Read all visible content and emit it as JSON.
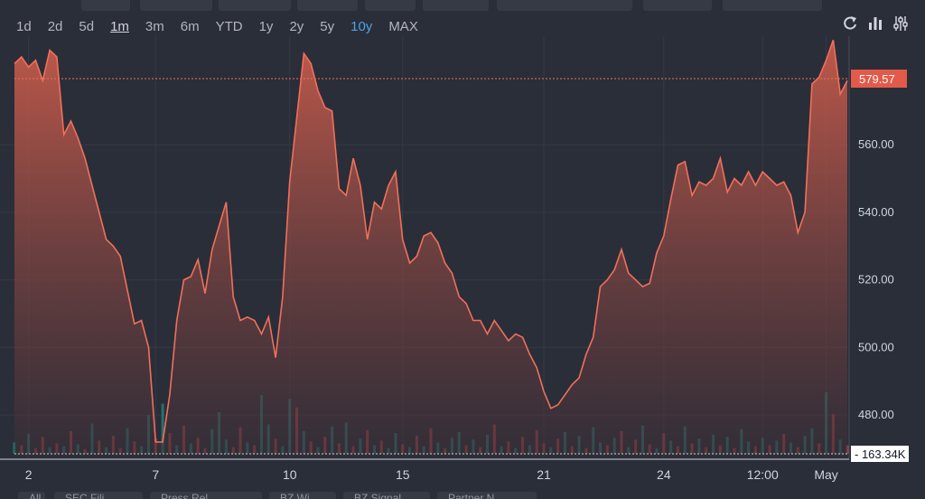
{
  "range_buttons": [
    "1d",
    "2d",
    "5d",
    "1m",
    "3m",
    "6m",
    "YTD",
    "1y",
    "2y",
    "5y",
    "10y",
    "MAX"
  ],
  "active_range": "1m",
  "highlight_range": "10y",
  "tool_icons": [
    "refresh-icon",
    "bar-chart-icon",
    "settings-sliders-icon"
  ],
  "bottom_tabs": [
    "All",
    "SEC Fili...",
    "Press Rel...",
    "BZ Wi...",
    "BZ Signal...",
    "Partner N..."
  ],
  "colors": {
    "background": "#2a2e39",
    "line": "#f0705a",
    "price_label_bg": "#e35a4a",
    "volume_up": "#26a69a",
    "volume_down": "#ef5350",
    "grid": "#363a45"
  },
  "chart_data": {
    "type": "area",
    "x_tick_labels": [
      "2",
      "7",
      "10",
      "15",
      "21",
      "24",
      "12:00",
      "May"
    ],
    "y_tick_labels": [
      "480.00",
      "500.00",
      "520.00",
      "540.00",
      "560.00"
    ],
    "ylim": [
      468,
      590
    ],
    "last_price": 579.57,
    "last_price_label": "579.57",
    "volume_label": "163.34K",
    "price_series": [
      [
        0,
        584
      ],
      [
        1,
        586
      ],
      [
        2,
        583
      ],
      [
        3,
        585
      ],
      [
        4,
        579
      ],
      [
        5,
        588
      ],
      [
        6,
        586
      ],
      [
        7,
        563
      ],
      [
        8,
        567
      ],
      [
        9,
        562
      ],
      [
        10,
        556
      ],
      [
        11,
        548
      ],
      [
        12,
        540
      ],
      [
        13,
        532
      ],
      [
        14,
        530
      ],
      [
        15,
        527
      ],
      [
        16,
        517
      ],
      [
        17,
        507
      ],
      [
        18,
        508
      ],
      [
        19,
        500
      ],
      [
        20,
        472
      ],
      [
        21,
        472
      ],
      [
        22,
        486
      ],
      [
        23,
        508
      ],
      [
        24,
        520
      ],
      [
        25,
        521
      ],
      [
        26,
        526
      ],
      [
        27,
        516
      ],
      [
        28,
        529
      ],
      [
        29,
        536
      ],
      [
        30,
        543
      ],
      [
        31,
        515
      ],
      [
        32,
        508
      ],
      [
        33,
        509
      ],
      [
        34,
        508
      ],
      [
        35,
        504
      ],
      [
        36,
        509
      ],
      [
        37,
        497
      ],
      [
        38,
        515
      ],
      [
        39,
        549
      ],
      [
        40,
        568
      ],
      [
        41,
        587
      ],
      [
        42,
        584
      ],
      [
        43,
        576
      ],
      [
        44,
        571
      ],
      [
        45,
        570
      ],
      [
        46,
        547
      ],
      [
        47,
        545
      ],
      [
        48,
        556
      ],
      [
        49,
        548
      ],
      [
        50,
        532
      ],
      [
        51,
        543
      ],
      [
        52,
        541
      ],
      [
        53,
        548
      ],
      [
        54,
        552
      ],
      [
        55,
        532
      ],
      [
        56,
        525
      ],
      [
        57,
        527
      ],
      [
        58,
        533
      ],
      [
        59,
        534
      ],
      [
        60,
        531
      ],
      [
        61,
        525
      ],
      [
        62,
        522
      ],
      [
        63,
        515
      ],
      [
        64,
        513
      ],
      [
        65,
        508
      ],
      [
        66,
        508
      ],
      [
        67,
        504
      ],
      [
        68,
        508
      ],
      [
        69,
        505
      ],
      [
        70,
        502
      ],
      [
        71,
        504
      ],
      [
        72,
        503
      ],
      [
        73,
        498
      ],
      [
        74,
        494
      ],
      [
        75,
        487
      ],
      [
        76,
        482
      ],
      [
        77,
        483
      ],
      [
        78,
        486
      ],
      [
        79,
        489
      ],
      [
        80,
        491
      ],
      [
        81,
        498
      ],
      [
        82,
        503
      ],
      [
        83,
        518
      ],
      [
        84,
        520
      ],
      [
        85,
        523
      ],
      [
        86,
        529
      ],
      [
        87,
        522
      ],
      [
        88,
        520
      ],
      [
        89,
        518
      ],
      [
        90,
        519
      ],
      [
        91,
        528
      ],
      [
        92,
        533
      ],
      [
        93,
        544
      ],
      [
        94,
        554
      ],
      [
        95,
        555
      ],
      [
        96,
        545
      ],
      [
        97,
        549
      ],
      [
        98,
        548
      ],
      [
        99,
        550
      ],
      [
        100,
        556
      ],
      [
        101,
        546
      ],
      [
        102,
        550
      ],
      [
        103,
        548
      ],
      [
        104,
        552
      ],
      [
        105,
        548
      ],
      [
        106,
        552
      ],
      [
        107,
        550
      ],
      [
        108,
        548
      ],
      [
        109,
        549
      ],
      [
        110,
        545
      ],
      [
        111,
        534
      ],
      [
        112,
        540
      ],
      [
        113,
        578
      ],
      [
        114,
        580
      ],
      [
        115,
        585
      ],
      [
        116,
        591
      ],
      [
        117,
        575
      ],
      [
        118,
        579
      ]
    ],
    "volume_series": [
      [
        0,
        1.2
      ],
      [
        1,
        0.9
      ],
      [
        2,
        2.1
      ],
      [
        3,
        0.6
      ],
      [
        4,
        1.8
      ],
      [
        5,
        0.7
      ],
      [
        6,
        1.1
      ],
      [
        7,
        0.8
      ],
      [
        8,
        2.4
      ],
      [
        9,
        1.0
      ],
      [
        10,
        0.5
      ],
      [
        11,
        3.2
      ],
      [
        12,
        1.4
      ],
      [
        13,
        0.7
      ],
      [
        14,
        1.9
      ],
      [
        15,
        0.6
      ],
      [
        16,
        2.7
      ],
      [
        17,
        1.3
      ],
      [
        18,
        0.8
      ],
      [
        19,
        4.1
      ],
      [
        20,
        1.6
      ],
      [
        21,
        5.3
      ],
      [
        22,
        2.2
      ],
      [
        23,
        0.9
      ],
      [
        24,
        3.0
      ],
      [
        25,
        1.1
      ],
      [
        26,
        1.7
      ],
      [
        27,
        0.6
      ],
      [
        28,
        2.6
      ],
      [
        29,
        4.4
      ],
      [
        30,
        1.5
      ],
      [
        31,
        0.7
      ],
      [
        32,
        2.8
      ],
      [
        33,
        1.2
      ],
      [
        34,
        0.9
      ],
      [
        35,
        6.2
      ],
      [
        36,
        3.1
      ],
      [
        37,
        1.6
      ],
      [
        38,
        0.8
      ],
      [
        39,
        5.8
      ],
      [
        40,
        4.9
      ],
      [
        41,
        2.4
      ],
      [
        42,
        1.3
      ],
      [
        43,
        0.7
      ],
      [
        44,
        1.8
      ],
      [
        45,
        2.9
      ],
      [
        46,
        1.1
      ],
      [
        47,
        3.3
      ],
      [
        48,
        0.8
      ],
      [
        49,
        1.6
      ],
      [
        50,
        2.5
      ],
      [
        51,
        0.9
      ],
      [
        52,
        1.4
      ],
      [
        53,
        0.6
      ],
      [
        54,
        2.2
      ],
      [
        55,
        1.0
      ],
      [
        56,
        0.7
      ],
      [
        57,
        1.9
      ],
      [
        58,
        0.8
      ],
      [
        59,
        2.7
      ],
      [
        60,
        1.2
      ],
      [
        61,
        0.6
      ],
      [
        62,
        1.7
      ],
      [
        63,
        2.3
      ],
      [
        64,
        0.9
      ],
      [
        65,
        1.5
      ],
      [
        66,
        0.7
      ],
      [
        67,
        2.0
      ],
      [
        68,
        3.1
      ],
      [
        69,
        0.8
      ],
      [
        70,
        1.3
      ],
      [
        71,
        0.6
      ],
      [
        72,
        1.8
      ],
      [
        73,
        0.9
      ],
      [
        74,
        2.5
      ],
      [
        75,
        1.1
      ],
      [
        76,
        0.7
      ],
      [
        77,
        1.6
      ],
      [
        78,
        2.3
      ],
      [
        79,
        0.8
      ],
      [
        80,
        1.9
      ],
      [
        81,
        0.6
      ],
      [
        82,
        2.8
      ],
      [
        83,
        1.2
      ],
      [
        84,
        0.9
      ],
      [
        85,
        1.7
      ],
      [
        86,
        2.4
      ],
      [
        87,
        0.7
      ],
      [
        88,
        1.5
      ],
      [
        89,
        3.0
      ],
      [
        90,
        1.0
      ],
      [
        91,
        0.6
      ],
      [
        92,
        2.2
      ],
      [
        93,
        1.4
      ],
      [
        94,
        0.8
      ],
      [
        95,
        2.9
      ],
      [
        96,
        1.1
      ],
      [
        97,
        1.6
      ],
      [
        98,
        0.7
      ],
      [
        99,
        2.0
      ],
      [
        100,
        0.9
      ],
      [
        101,
        1.8
      ],
      [
        102,
        0.6
      ],
      [
        103,
        2.6
      ],
      [
        104,
        1.3
      ],
      [
        105,
        0.8
      ],
      [
        106,
        1.7
      ],
      [
        107,
        0.9
      ],
      [
        108,
        1.4
      ],
      [
        109,
        2.1
      ],
      [
        110,
        1.2
      ],
      [
        111,
        0.7
      ],
      [
        112,
        1.9
      ],
      [
        113,
        2.7
      ],
      [
        114,
        1.1
      ],
      [
        115,
        6.5
      ],
      [
        116,
        4.2
      ],
      [
        117,
        1.5
      ],
      [
        118,
        0.9
      ]
    ],
    "volume_up_flags": [
      1,
      0,
      1,
      0,
      0,
      1,
      0,
      1,
      0,
      1,
      0,
      1,
      0,
      1,
      0,
      0,
      1,
      0,
      1,
      1,
      0,
      1,
      0,
      1,
      0,
      1,
      0,
      0,
      1,
      1,
      1,
      0,
      0,
      1,
      0,
      1,
      1,
      0,
      1,
      1,
      0,
      1,
      0,
      1,
      0,
      1,
      0,
      1,
      0,
      1,
      0,
      1,
      0,
      1,
      1,
      0,
      1,
      0,
      1,
      0,
      1,
      0,
      1,
      1,
      0,
      1,
      0,
      1,
      0,
      1,
      0,
      1,
      0,
      1,
      0,
      0,
      1,
      0,
      1,
      0,
      1,
      0,
      1,
      1,
      0,
      1,
      0,
      1,
      0,
      1,
      0,
      1,
      0,
      1,
      0,
      1,
      0,
      1,
      0,
      1,
      0,
      1,
      0,
      1,
      1,
      0,
      1,
      0,
      1,
      0,
      1,
      0,
      1,
      1,
      0,
      1,
      0,
      1,
      0
    ]
  }
}
